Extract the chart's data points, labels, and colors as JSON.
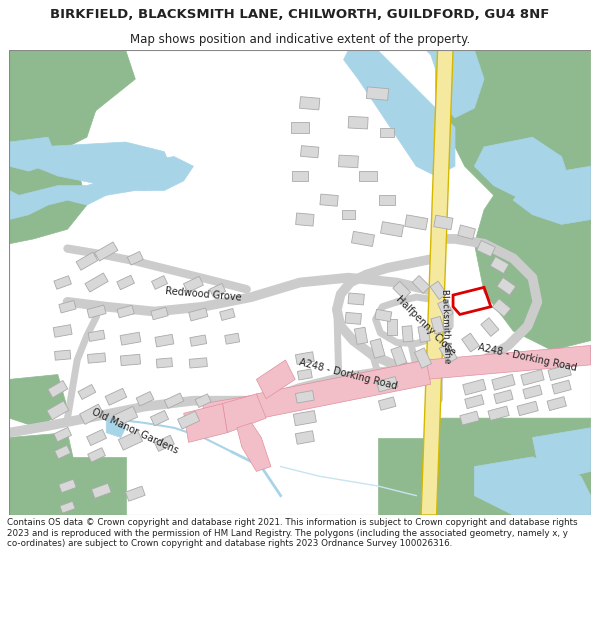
{
  "title": "BIRKFIELD, BLACKSMITH LANE, CHILWORTH, GUILDFORD, GU4 8NF",
  "subtitle": "Map shows position and indicative extent of the property.",
  "footer": "Contains OS data © Crown copyright and database right 2021. This information is subject to Crown copyright and database rights 2023 and is reproduced with the permission of HM Land Registry. The polygons (including the associated geometry, namely x, y co-ordinates) are subject to Crown copyright and database rights 2023 Ordnance Survey 100026316.",
  "bg_color": "#ffffff",
  "map_bg": "#f7f7f7",
  "green_color": "#8fba8f",
  "blue_color": "#a8d4e8",
  "road_yellow_fill": "#f5e9a0",
  "road_yellow_edge": "#d4b800",
  "road_pink": "#f2bfc8",
  "building_color": "#d8d8d8",
  "building_edge": "#aaaaaa",
  "plot_color": "#dd0000",
  "text_color": "#222222"
}
